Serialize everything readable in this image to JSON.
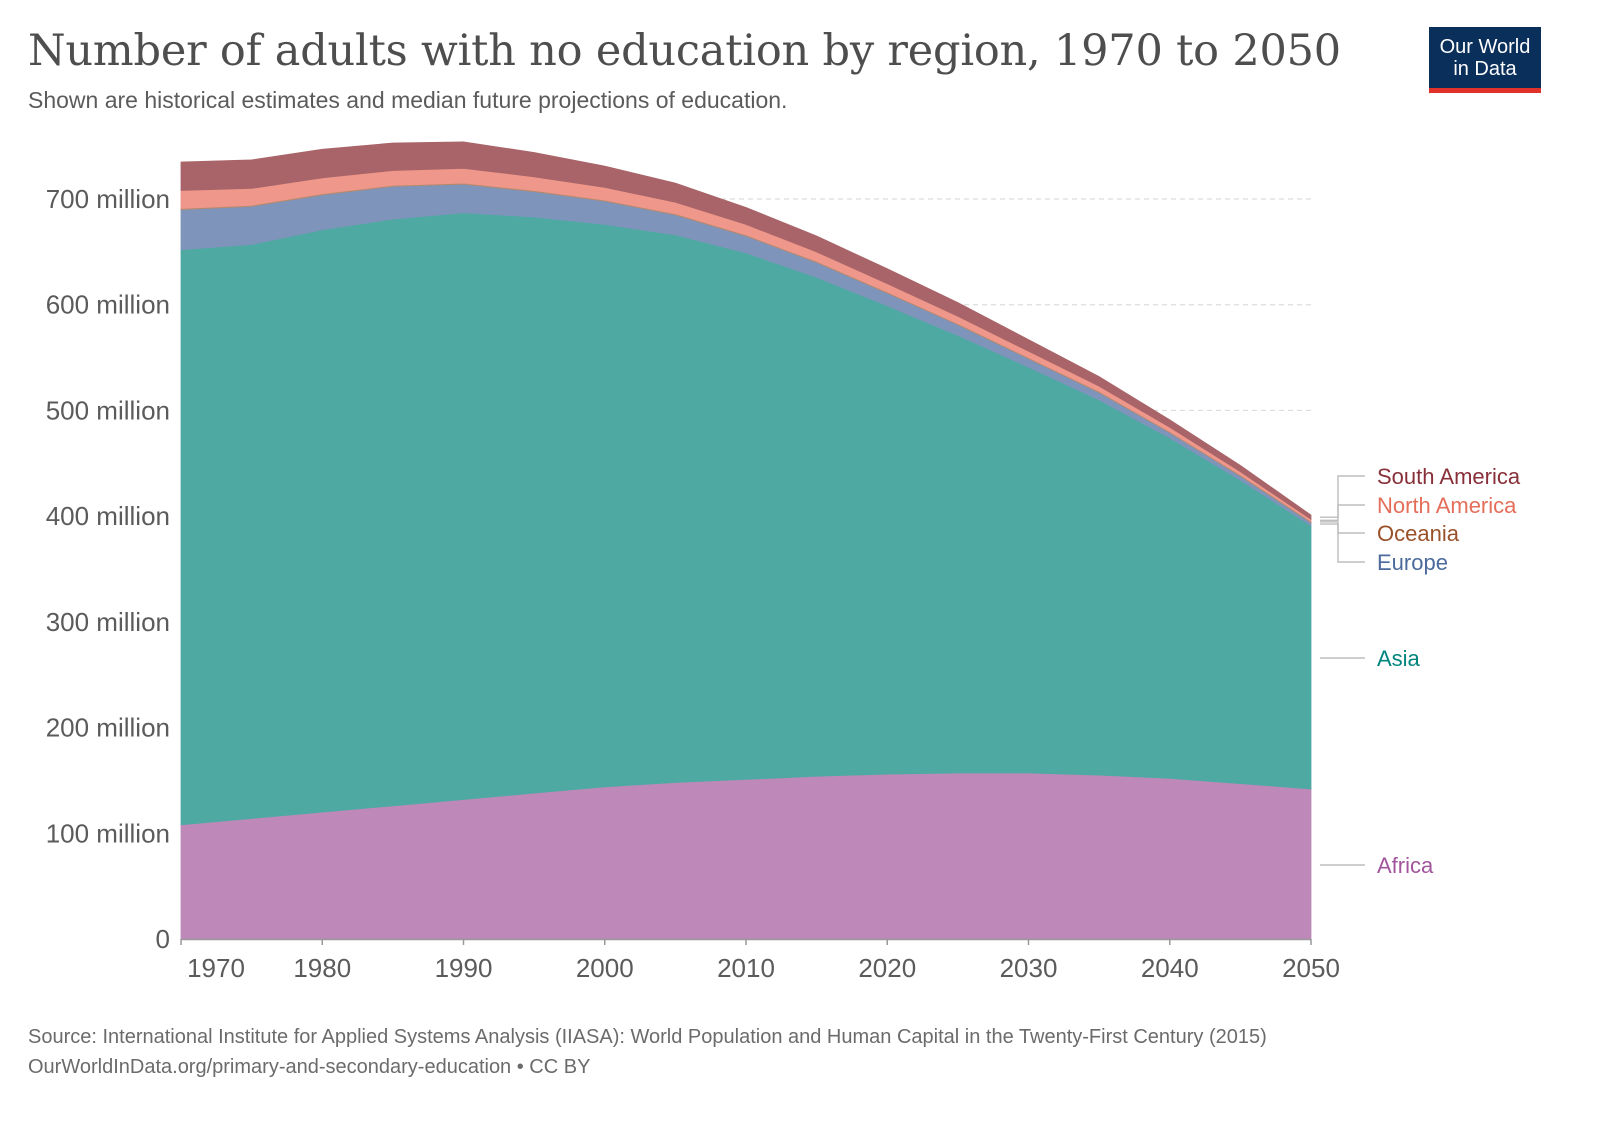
{
  "header": {
    "title": "Number of adults with no education by region, 1970 to 2050",
    "subtitle": "Shown are historical estimates and median future projections of education."
  },
  "logo": {
    "line1": "Our World",
    "line2": "in Data"
  },
  "footer": {
    "source": "Source: International Institute for Applied Systems Analysis (IIASA): World Population and Human Capital in the Twenty-First Century (2015)",
    "url": "OurWorldInData.org/primary-and-secondary-education • CC BY"
  },
  "chart_data": {
    "type": "area",
    "stacked": true,
    "title": "Number of adults with no education by region, 1970 to 2050",
    "x": [
      1970,
      1975,
      1980,
      1985,
      1990,
      1995,
      2000,
      2005,
      2010,
      2015,
      2020,
      2025,
      2030,
      2035,
      2040,
      2045,
      2050
    ],
    "ylim": [
      0,
      750
    ],
    "yunit": "million",
    "yticks": [
      0,
      100,
      200,
      300,
      400,
      500,
      600,
      700
    ],
    "ytick_labels": [
      "0",
      "100 million",
      "200 million",
      "300 million",
      "400 million",
      "500 million",
      "600 million",
      "700 million"
    ],
    "xticks": [
      1970,
      1980,
      1990,
      2000,
      2010,
      2020,
      2030,
      2040,
      2050
    ],
    "xtick_labels": [
      "1970",
      "1980",
      "1990",
      "2000",
      "2010",
      "2020",
      "2030",
      "2040",
      "2050"
    ],
    "grid": "horizontal-dashed",
    "series": [
      {
        "name": "Africa",
        "color": "#be88b9",
        "label_color": "#a2559c",
        "values": [
          108,
          114,
          120,
          126,
          132,
          138,
          144,
          148,
          151,
          154,
          156,
          157,
          157,
          155,
          152,
          147,
          142
        ]
      },
      {
        "name": "Asia",
        "color": "#4ea9a3",
        "label_color": "#00847e",
        "values": [
          544,
          543,
          551,
          555,
          555,
          545,
          532,
          518,
          498,
          472,
          443,
          414,
          384,
          355,
          322,
          287,
          249
        ]
      },
      {
        "name": "Europe",
        "color": "#7f94bb",
        "label_color": "#4c6a9c",
        "values": [
          38,
          36,
          33,
          31,
          27,
          24,
          22,
          19,
          16,
          14,
          12,
          10,
          8,
          7,
          5,
          4,
          3
        ]
      },
      {
        "name": "Oceania",
        "color": "#b58a6e",
        "label_color": "#9a5129",
        "values": [
          1,
          1,
          1,
          1,
          1,
          1,
          1,
          1,
          1,
          1,
          1,
          1,
          1,
          1,
          1,
          1,
          1
        ]
      },
      {
        "name": "North America",
        "color": "#ee978a",
        "label_color": "#e56e5a",
        "values": [
          17,
          16,
          15,
          14,
          14,
          13,
          12,
          11,
          10,
          9,
          8,
          7,
          6,
          5,
          4,
          3,
          2
        ]
      },
      {
        "name": "South America",
        "color": "#a86468",
        "label_color": "#883039",
        "values": [
          27,
          27,
          27,
          26,
          25,
          23,
          20,
          18,
          16,
          15,
          14,
          13,
          11,
          9,
          7,
          6,
          4
        ]
      }
    ],
    "legend": "right"
  }
}
